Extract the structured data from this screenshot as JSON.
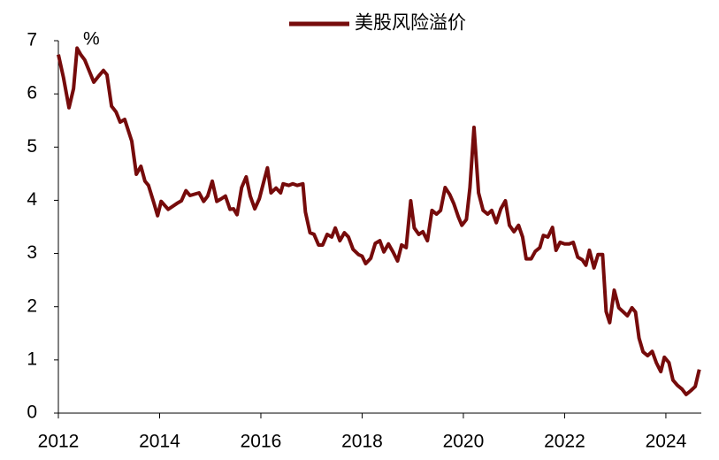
{
  "chart_data": {
    "type": "line",
    "legend": "top",
    "y_unit_label": "%",
    "xlim": [
      2012,
      2024.7
    ],
    "xticks": [
      2012,
      2014,
      2016,
      2018,
      2020,
      2022,
      2024
    ],
    "ylim": [
      0,
      7
    ],
    "yticks": [
      0,
      1,
      2,
      3,
      4,
      5,
      6,
      7
    ],
    "x": [
      2012.0,
      2012.1,
      2012.21,
      2012.3,
      2012.37,
      2012.44,
      2012.52,
      2012.7,
      2012.8,
      2012.89,
      2012.96,
      2013.05,
      2013.14,
      2013.22,
      2013.31,
      2013.45,
      2013.54,
      2013.63,
      2013.71,
      2013.78,
      2013.89,
      2013.96,
      2014.03,
      2014.17,
      2014.34,
      2014.43,
      2014.52,
      2014.6,
      2014.78,
      2014.87,
      2014.95,
      2015.04,
      2015.13,
      2015.22,
      2015.3,
      2015.39,
      2015.46,
      2015.53,
      2015.62,
      2015.71,
      2015.79,
      2015.88,
      2015.97,
      2016.06,
      2016.13,
      2016.2,
      2016.3,
      2016.39,
      2016.44,
      2016.55,
      2016.63,
      2016.72,
      2016.83,
      2016.88,
      2016.97,
      2017.05,
      2017.14,
      2017.22,
      2017.31,
      2017.4,
      2017.47,
      2017.56,
      2017.65,
      2017.73,
      2017.82,
      2017.93,
      2018.0,
      2018.07,
      2018.17,
      2018.26,
      2018.35,
      2018.43,
      2018.52,
      2018.61,
      2018.7,
      2018.78,
      2018.87,
      2018.96,
      2019.03,
      2019.12,
      2019.2,
      2019.29,
      2019.38,
      2019.47,
      2019.55,
      2019.64,
      2019.73,
      2019.81,
      2019.9,
      2019.97,
      2020.06,
      2020.13,
      2020.21,
      2020.3,
      2020.39,
      2020.48,
      2020.56,
      2020.65,
      2020.74,
      2020.83,
      2020.91,
      2021.0,
      2021.09,
      2021.17,
      2021.24,
      2021.34,
      2021.42,
      2021.51,
      2021.58,
      2021.67,
      2021.76,
      2021.83,
      2021.91,
      2022.0,
      2022.09,
      2022.17,
      2022.26,
      2022.35,
      2022.42,
      2022.49,
      2022.58,
      2022.66,
      2022.75,
      2022.82,
      2022.89,
      2022.98,
      2023.07,
      2023.15,
      2023.24,
      2023.33,
      2023.4,
      2023.47,
      2023.55,
      2023.64,
      2023.73,
      2023.81,
      2023.9,
      2023.97,
      2024.06,
      2024.14,
      2024.23,
      2024.32,
      2024.4,
      2024.49,
      2024.58,
      2024.66
    ],
    "series": [
      {
        "name": "美股风险溢价",
        "color": "#760b0b",
        "values": [
          6.74,
          6.31,
          5.74,
          6.1,
          6.86,
          6.74,
          6.64,
          6.22,
          6.34,
          6.44,
          6.36,
          5.77,
          5.66,
          5.47,
          5.52,
          5.11,
          4.49,
          4.64,
          4.36,
          4.28,
          3.94,
          3.71,
          3.98,
          3.83,
          3.94,
          3.99,
          4.18,
          4.09,
          4.14,
          3.98,
          4.08,
          4.36,
          3.98,
          4.03,
          4.08,
          3.83,
          3.84,
          3.73,
          4.24,
          4.44,
          4.08,
          3.84,
          4.03,
          4.36,
          4.61,
          4.14,
          4.23,
          4.14,
          4.31,
          4.28,
          4.31,
          4.28,
          4.31,
          3.78,
          3.39,
          3.36,
          3.16,
          3.16,
          3.36,
          3.31,
          3.48,
          3.24,
          3.39,
          3.31,
          3.08,
          2.98,
          2.95,
          2.81,
          2.91,
          3.19,
          3.24,
          3.03,
          3.18,
          3.03,
          2.86,
          3.16,
          3.11,
          3.99,
          3.48,
          3.36,
          3.41,
          3.24,
          3.81,
          3.74,
          3.81,
          4.24,
          4.11,
          3.94,
          3.69,
          3.53,
          3.64,
          4.24,
          5.37,
          4.14,
          3.81,
          3.74,
          3.81,
          3.58,
          3.84,
          3.99,
          3.53,
          3.41,
          3.53,
          3.31,
          2.9,
          2.9,
          3.04,
          3.11,
          3.34,
          3.31,
          3.49,
          3.06,
          3.21,
          3.18,
          3.18,
          3.21,
          2.93,
          2.88,
          2.78,
          3.06,
          2.73,
          2.98,
          2.98,
          1.91,
          1.7,
          2.31,
          1.98,
          1.91,
          1.83,
          1.98,
          1.9,
          1.41,
          1.15,
          1.08,
          1.16,
          0.95,
          0.78,
          1.05,
          0.95,
          0.62,
          0.52,
          0.45,
          0.35,
          0.42,
          0.5,
          0.82
        ]
      }
    ]
  }
}
